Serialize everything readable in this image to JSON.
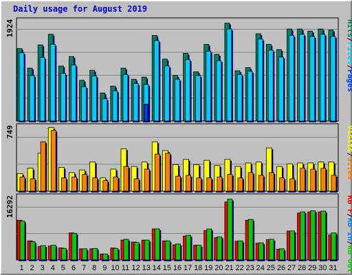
{
  "title": "Daily usage for August 2019",
  "chart_data": [
    {
      "type": "bar",
      "panel": "top",
      "ymax_label": "1924",
      "ylim": [
        0,
        1924
      ],
      "legend_order": [
        "Hits",
        "Files",
        "Pages"
      ],
      "legend_sep": "/",
      "categories": [
        "1",
        "2",
        "3",
        "4",
        "5",
        "6",
        "7",
        "8",
        "9",
        "10",
        "11",
        "12",
        "13",
        "14",
        "15",
        "16",
        "17",
        "18",
        "19",
        "20",
        "21",
        "22",
        "23",
        "24",
        "25",
        "26",
        "27",
        "28",
        "29",
        "30",
        "31"
      ],
      "weekend_days": [
        3,
        4,
        10,
        11,
        17,
        18,
        24,
        25,
        31
      ],
      "series": [
        {
          "name": "Hits",
          "values": [
            1370,
            1000,
            1440,
            1640,
            1040,
            1220,
            770,
            960,
            530,
            660,
            1000,
            790,
            830,
            1620,
            1170,
            860,
            1280,
            930,
            1450,
            1260,
            1850,
            950,
            1010,
            1650,
            1450,
            1350,
            1740,
            1740,
            1700,
            1740,
            1720
          ],
          "color": "#008060"
        },
        {
          "name": "Files",
          "values": [
            1290,
            860,
            1200,
            1450,
            900,
            1060,
            650,
            850,
            420,
            570,
            880,
            710,
            690,
            1520,
            1040,
            790,
            1160,
            860,
            1320,
            1140,
            1740,
            880,
            940,
            1550,
            1340,
            1210,
            1620,
            1640,
            1600,
            1640,
            1600
          ],
          "color": "#00ccff"
        },
        {
          "name": "Pages",
          "values": [
            0,
            0,
            0,
            0,
            0,
            0,
            0,
            0,
            0,
            0,
            0,
            0,
            320,
            0,
            0,
            0,
            0,
            0,
            0,
            0,
            0,
            0,
            0,
            0,
            0,
            0,
            0,
            0,
            0,
            0,
            0
          ],
          "color": "#0040ff"
        }
      ]
    },
    {
      "type": "bar",
      "panel": "middle",
      "ymax_label": "749",
      "ylim": [
        0,
        749
      ],
      "legend_order": [
        "Visits",
        "Sites"
      ],
      "legend_sep": "/",
      "series": [
        {
          "name": "Visits",
          "values": [
            200,
            260,
            430,
            720,
            270,
            210,
            240,
            330,
            150,
            250,
            480,
            280,
            330,
            560,
            460,
            300,
            360,
            300,
            350,
            290,
            360,
            280,
            320,
            330,
            490,
            280,
            310,
            320,
            320,
            330,
            330
          ],
          "color": "#ffff00"
        },
        {
          "name": "Sites",
          "values": [
            160,
            140,
            560,
            690,
            150,
            160,
            190,
            150,
            120,
            160,
            280,
            140,
            250,
            420,
            430,
            170,
            180,
            150,
            150,
            160,
            190,
            150,
            210,
            180,
            210,
            150,
            140,
            260,
            250,
            260,
            180
          ],
          "color": "#ff8000"
        }
      ]
    },
    {
      "type": "bar",
      "panel": "bottom",
      "ymax_label": "16292",
      "ylim": [
        0,
        16292
      ],
      "legend_order": [
        "KB F",
        "KB In",
        "KB Out"
      ],
      "legend_sep": "/",
      "series": [
        {
          "name": "KB F",
          "values": [
            10000,
            4800,
            3400,
            3500,
            3000,
            6800,
            2800,
            2800,
            1500,
            3000,
            5000,
            4500,
            5000,
            7800,
            4800,
            3800,
            6000,
            3700,
            7400,
            5600,
            14600,
            4700,
            10000,
            4200,
            5100,
            2700,
            7300,
            11800,
            12100,
            12100,
            6300
          ],
          "color": "#ff0000"
        },
        {
          "name": "KB In",
          "values": [
            0,
            0,
            0,
            0,
            0,
            0,
            0,
            0,
            0,
            0,
            0,
            0,
            0,
            0,
            0,
            0,
            0,
            0,
            0,
            0,
            0,
            0,
            0,
            0,
            0,
            0,
            0,
            0,
            0,
            0,
            0
          ],
          "color": "#0080ff"
        },
        {
          "name": "KB Out",
          "values": [
            9800,
            4600,
            3600,
            3700,
            2900,
            6700,
            2800,
            2900,
            1500,
            2900,
            5200,
            4400,
            5000,
            7800,
            4800,
            4000,
            6200,
            3700,
            7800,
            5800,
            15300,
            4800,
            10200,
            4300,
            5200,
            2800,
            7300,
            12100,
            12400,
            12300,
            6800
          ],
          "color": "#00cc00"
        }
      ]
    }
  ]
}
